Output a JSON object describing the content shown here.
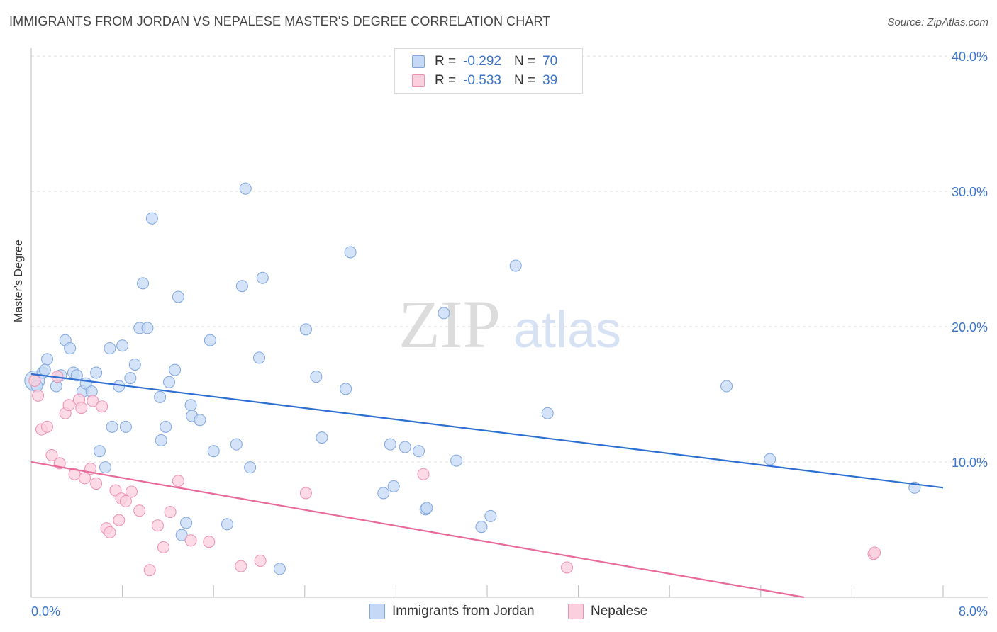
{
  "title": "IMMIGRANTS FROM JORDAN VS NEPALESE MASTER'S DEGREE CORRELATION CHART",
  "source": "Source: ZipAtlas.com",
  "watermark": {
    "zip": "ZIP",
    "atlas": "atlas"
  },
  "legend": {
    "r_label": "R =",
    "n_label": "N =",
    "series1": {
      "r": "-0.292",
      "n": "70"
    },
    "series2": {
      "r": "-0.533",
      "n": "39"
    }
  },
  "bottom_legend": {
    "series1": "Immigrants from Jordan",
    "series2": "Nepalese"
  },
  "colors": {
    "blue_fill": "#c5d9f6",
    "blue_stroke": "#7ea6e0",
    "blue_line": "#2c6fd1",
    "pink_fill": "#fbcfde",
    "pink_stroke": "#ee8fb0",
    "pink_line": "#e8699a",
    "tick_label": "#3a74c9"
  },
  "chart_data": {
    "type": "scatter",
    "title": "IMMIGRANTS FROM JORDAN VS NEPALESE MASTER'S DEGREE CORRELATION CHART",
    "xlabel": "",
    "ylabel": "Master's Degree",
    "xlim": [
      0,
      8
    ],
    "ylim": [
      0,
      40
    ],
    "x_tick_labels": [
      "0.0%",
      "8.0%"
    ],
    "y_ticks": [
      10,
      20,
      30,
      40
    ],
    "y_tick_labels": [
      "10.0%",
      "20.0%",
      "30.0%",
      "40.0%"
    ],
    "grid": true,
    "series": [
      {
        "name": "Immigrants from Jordan",
        "trend": {
          "x": [
            0.0,
            8.0
          ],
          "y": [
            16.5,
            8.1
          ]
        },
        "points": [
          [
            0.03,
            16.0
          ],
          [
            0.05,
            15.6
          ],
          [
            0.1,
            16.6
          ],
          [
            0.14,
            17.6
          ],
          [
            0.12,
            16.8
          ],
          [
            0.22,
            15.6
          ],
          [
            0.26,
            16.4
          ],
          [
            0.3,
            19.0
          ],
          [
            0.34,
            18.4
          ],
          [
            0.37,
            16.6
          ],
          [
            0.4,
            16.4
          ],
          [
            0.45,
            15.2
          ],
          [
            0.48,
            15.8
          ],
          [
            0.53,
            15.2
          ],
          [
            0.57,
            16.6
          ],
          [
            0.6,
            10.8
          ],
          [
            0.65,
            9.6
          ],
          [
            0.69,
            18.4
          ],
          [
            0.71,
            12.6
          ],
          [
            0.77,
            15.6
          ],
          [
            0.8,
            18.6
          ],
          [
            0.83,
            12.6
          ],
          [
            0.87,
            16.2
          ],
          [
            0.91,
            17.2
          ],
          [
            0.95,
            19.9
          ],
          [
            0.98,
            23.2
          ],
          [
            1.02,
            19.9
          ],
          [
            1.06,
            28.0
          ],
          [
            1.13,
            14.8
          ],
          [
            1.14,
            11.6
          ],
          [
            1.18,
            12.6
          ],
          [
            1.21,
            15.9
          ],
          [
            1.26,
            16.8
          ],
          [
            1.29,
            22.2
          ],
          [
            1.32,
            4.6
          ],
          [
            1.36,
            5.5
          ],
          [
            1.4,
            14.2
          ],
          [
            1.41,
            13.4
          ],
          [
            1.48,
            13.1
          ],
          [
            1.57,
            19.0
          ],
          [
            1.6,
            10.8
          ],
          [
            1.72,
            5.4
          ],
          [
            1.8,
            11.3
          ],
          [
            1.85,
            23.0
          ],
          [
            1.88,
            30.2
          ],
          [
            1.92,
            9.6
          ],
          [
            2.0,
            17.7
          ],
          [
            2.03,
            23.6
          ],
          [
            2.18,
            2.1
          ],
          [
            2.41,
            19.8
          ],
          [
            2.5,
            16.3
          ],
          [
            2.55,
            11.8
          ],
          [
            2.76,
            15.4
          ],
          [
            2.8,
            25.5
          ],
          [
            3.09,
            7.7
          ],
          [
            3.15,
            11.3
          ],
          [
            3.18,
            8.2
          ],
          [
            3.28,
            11.1
          ],
          [
            3.4,
            10.8
          ],
          [
            3.46,
            6.5
          ],
          [
            3.47,
            6.6
          ],
          [
            3.62,
            21.0
          ],
          [
            3.73,
            10.1
          ],
          [
            3.95,
            5.2
          ],
          [
            4.03,
            6.0
          ],
          [
            4.25,
            24.5
          ],
          [
            4.53,
            13.6
          ],
          [
            6.1,
            15.6
          ],
          [
            6.48,
            10.2
          ],
          [
            7.75,
            8.1
          ]
        ]
      },
      {
        "name": "Nepalese",
        "trend": {
          "x": [
            0.0,
            8.0
          ],
          "y": [
            10.0,
            -1.8
          ]
        },
        "points": [
          [
            0.03,
            16.0
          ],
          [
            0.06,
            14.9
          ],
          [
            0.09,
            12.4
          ],
          [
            0.14,
            12.6
          ],
          [
            0.18,
            10.5
          ],
          [
            0.23,
            16.3
          ],
          [
            0.25,
            9.9
          ],
          [
            0.3,
            13.6
          ],
          [
            0.33,
            14.2
          ],
          [
            0.38,
            9.1
          ],
          [
            0.42,
            14.6
          ],
          [
            0.44,
            14.0
          ],
          [
            0.47,
            8.8
          ],
          [
            0.52,
            9.5
          ],
          [
            0.54,
            14.5
          ],
          [
            0.57,
            8.4
          ],
          [
            0.62,
            14.1
          ],
          [
            0.66,
            5.1
          ],
          [
            0.69,
            4.8
          ],
          [
            0.74,
            7.9
          ],
          [
            0.77,
            5.7
          ],
          [
            0.79,
            7.3
          ],
          [
            0.83,
            7.1
          ],
          [
            0.88,
            7.8
          ],
          [
            0.95,
            6.4
          ],
          [
            1.04,
            2.0
          ],
          [
            1.11,
            5.3
          ],
          [
            1.16,
            3.7
          ],
          [
            1.22,
            6.3
          ],
          [
            1.29,
            8.6
          ],
          [
            1.4,
            4.2
          ],
          [
            1.56,
            4.1
          ],
          [
            1.84,
            2.3
          ],
          [
            2.01,
            2.7
          ],
          [
            2.41,
            7.7
          ],
          [
            3.44,
            9.1
          ],
          [
            4.7,
            2.2
          ],
          [
            7.39,
            3.2
          ],
          [
            7.4,
            3.3
          ]
        ]
      }
    ]
  }
}
